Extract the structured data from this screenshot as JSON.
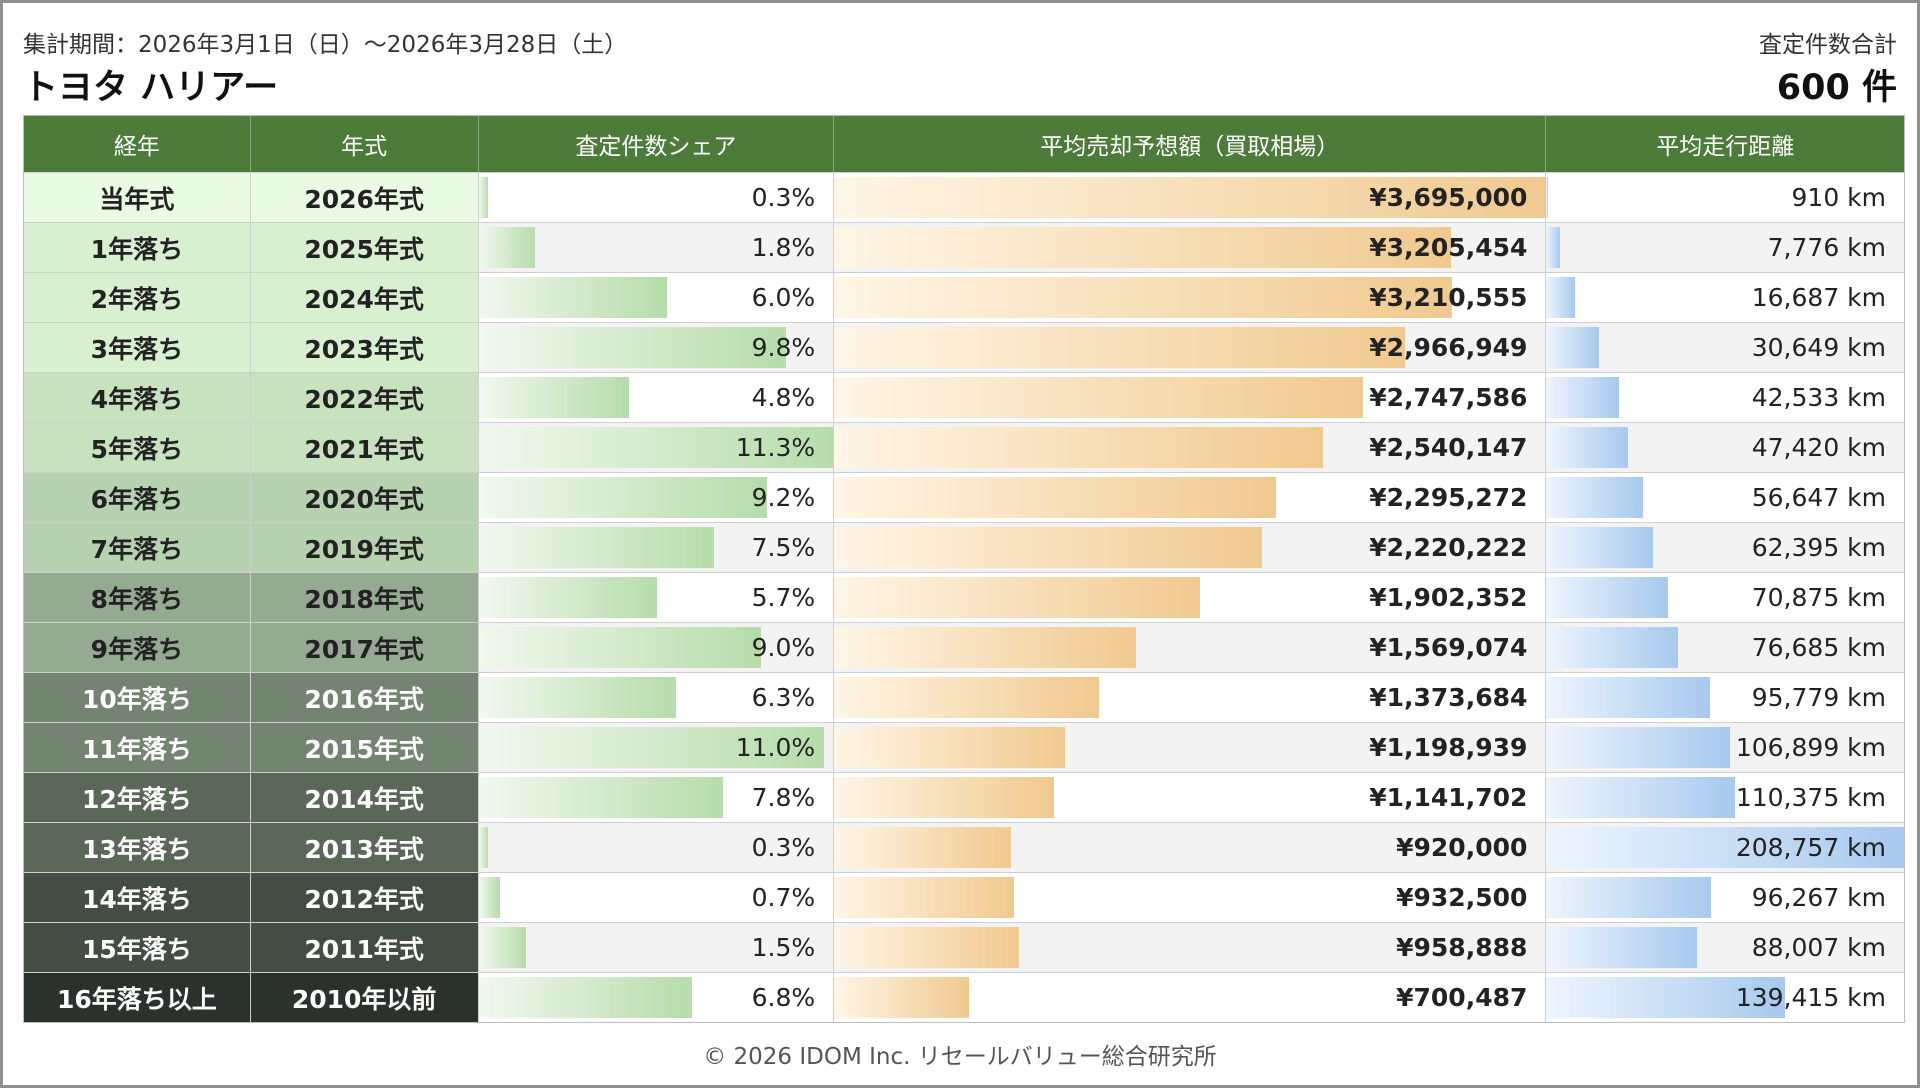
{
  "header": {
    "period": "集計期間：2026年3月1日（日）～2026年3月28日（土）",
    "car_name": "トヨタ ハリアー",
    "total_label": "査定件数合計",
    "total_value": "600 件"
  },
  "columns": [
    "経年",
    "年式",
    "査定件数シェア",
    "平均売却予想額（買取相場）",
    "平均走行距離"
  ],
  "rows": [
    {
      "age": "当年式",
      "year": "2026年式",
      "share_label": "0.3%",
      "price_label": "¥3,695,000",
      "dist_label": "910 km",
      "color": "#e9fbe3",
      "text": "#222"
    },
    {
      "age": "1年落ち",
      "year": "2025年式",
      "share_label": "1.8%",
      "price_label": "¥3,205,454",
      "dist_label": "7,776 km",
      "color": "#d8efd0",
      "text": "#222"
    },
    {
      "age": "2年落ち",
      "year": "2024年式",
      "share_label": "6.0%",
      "price_label": "¥3,210,555",
      "dist_label": "16,687 km",
      "color": "#d8efd0",
      "text": "#222"
    },
    {
      "age": "3年落ち",
      "year": "2023年式",
      "share_label": "9.8%",
      "price_label": "¥2,966,949",
      "dist_label": "30,649 km",
      "color": "#d8efd0",
      "text": "#222"
    },
    {
      "age": "4年落ち",
      "year": "2022年式",
      "share_label": "4.8%",
      "price_label": "¥2,747,586",
      "dist_label": "42,533 km",
      "color": "#c8e2c0",
      "text": "#222"
    },
    {
      "age": "5年落ち",
      "year": "2021年式",
      "share_label": "11.3%",
      "price_label": "¥2,540,147",
      "dist_label": "47,420 km",
      "color": "#c8e2c0",
      "text": "#222"
    },
    {
      "age": "6年落ち",
      "year": "2020年式",
      "share_label": "9.2%",
      "price_label": "¥2,295,272",
      "dist_label": "56,647 km",
      "color": "#b6d2b0",
      "text": "#222"
    },
    {
      "age": "7年落ち",
      "year": "2019年式",
      "share_label": "7.5%",
      "price_label": "¥2,220,222",
      "dist_label": "62,395 km",
      "color": "#b6d2b0",
      "text": "#222"
    },
    {
      "age": "8年落ち",
      "year": "2018年式",
      "share_label": "5.7%",
      "price_label": "¥1,902,352",
      "dist_label": "70,875 km",
      "color": "#94aa91",
      "text": "#222"
    },
    {
      "age": "9年落ち",
      "year": "2017年式",
      "share_label": "9.0%",
      "price_label": "¥1,569,074",
      "dist_label": "76,685 km",
      "color": "#94aa91",
      "text": "#222"
    },
    {
      "age": "10年落ち",
      "year": "2016年式",
      "share_label": "6.3%",
      "price_label": "¥1,373,684",
      "dist_label": "95,779 km",
      "color": "#738571",
      "text": "#ffffff"
    },
    {
      "age": "11年落ち",
      "year": "2015年式",
      "share_label": "11.0%",
      "price_label": "¥1,198,939",
      "dist_label": "106,899 km",
      "color": "#738571",
      "text": "#ffffff"
    },
    {
      "age": "12年落ち",
      "year": "2014年式",
      "share_label": "7.8%",
      "price_label": "¥1,141,702",
      "dist_label": "110,375 km",
      "color": "#5a6858",
      "text": "#ffffff"
    },
    {
      "age": "13年落ち",
      "year": "2013年式",
      "share_label": "0.3%",
      "price_label": "¥920,000",
      "dist_label": "208,757 km",
      "color": "#5a6858",
      "text": "#ffffff"
    },
    {
      "age": "14年落ち",
      "year": "2012年式",
      "share_label": "0.7%",
      "price_label": "¥932,500",
      "dist_label": "96,267 km",
      "color": "#444d43",
      "text": "#ffffff"
    },
    {
      "age": "15年落ち",
      "year": "2011年式",
      "share_label": "1.5%",
      "price_label": "¥958,888",
      "dist_label": "88,007 km",
      "color": "#444d43",
      "text": "#ffffff"
    },
    {
      "age": "16年落ち以上",
      "year": "2010年以前",
      "share_label": "6.8%",
      "price_label": "¥700,487",
      "dist_label": "139,415 km",
      "color": "#2b312b",
      "text": "#ffffff"
    }
  ],
  "chart_data": {
    "type": "table",
    "title": "トヨタ ハリアー",
    "categories": [
      "当年式",
      "1年落ち",
      "2年落ち",
      "3年落ち",
      "4年落ち",
      "5年落ち",
      "6年落ち",
      "7年落ち",
      "8年落ち",
      "9年落ち",
      "10年落ち",
      "11年落ち",
      "12年落ち",
      "13年落ち",
      "14年落ち",
      "15年落ち",
      "16年落ち以上"
    ],
    "series": [
      {
        "name": "査定件数シェア",
        "values": [
          0.3,
          1.8,
          6.0,
          9.8,
          4.8,
          11.3,
          9.2,
          7.5,
          5.7,
          9.0,
          6.3,
          11.0,
          7.8,
          0.3,
          0.7,
          1.5,
          6.8
        ],
        "max": 11.3
      },
      {
        "name": "平均売却予想額（買取相場）",
        "values": [
          3695000,
          3205454,
          3210555,
          2966949,
          2747586,
          2540147,
          2295272,
          2220222,
          1902352,
          1569074,
          1373684,
          1198939,
          1141702,
          920000,
          932500,
          958888,
          700487
        ],
        "max": 3695000
      },
      {
        "name": "平均走行距離",
        "values": [
          910,
          7776,
          16687,
          30649,
          42533,
          47420,
          56647,
          62395,
          70875,
          76685,
          95779,
          106899,
          110375,
          208757,
          96267,
          88007,
          139415
        ],
        "max": 208757
      }
    ]
  },
  "footer": "© 2026 IDOM Inc. リセールバリュー総合研究所"
}
